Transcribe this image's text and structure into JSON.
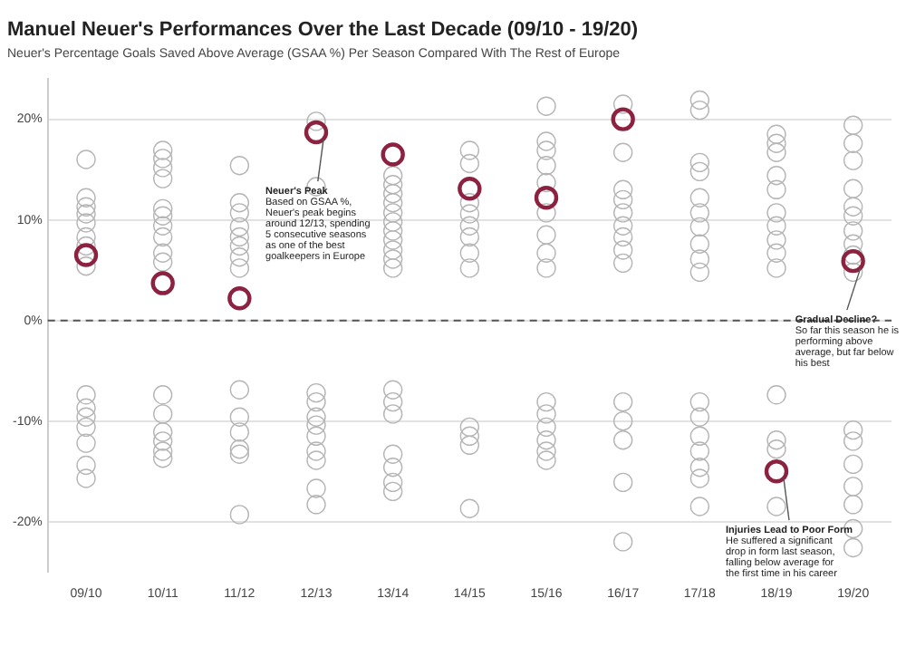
{
  "chart_data": {
    "type": "scatter",
    "title": "Manuel Neuer's Performances Over the Last Decade (09/10 - 19/20)",
    "subtitle": "Neuer's Percentage Goals Saved Above Average (GSAA %) Per Season Compared With The Rest of Europe",
    "categories": [
      "09/10",
      "10/11",
      "11/12",
      "12/13",
      "13/14",
      "14/15",
      "15/16",
      "16/17",
      "17/18",
      "18/19",
      "19/20"
    ],
    "ylim": [
      -25,
      24
    ],
    "yticks": [
      {
        "value": -20,
        "label": "-20%"
      },
      {
        "value": -10,
        "label": "-10%"
      },
      {
        "value": 0,
        "label": "0%"
      },
      {
        "value": 10,
        "label": "10%"
      },
      {
        "value": 20,
        "label": "20%"
      }
    ],
    "grid": "y",
    "marker": "circle",
    "legend": false,
    "ref_lines": [
      {
        "axis": "y",
        "value": 0,
        "line_style": "dashed"
      }
    ],
    "series": [
      {
        "color": "#b5b5b5",
        "x": [
          "09/10",
          "09/10",
          "09/10",
          "09/10",
          "09/10",
          "09/10",
          "09/10",
          "09/10",
          "09/10",
          "09/10",
          "09/10",
          "09/10",
          "09/10",
          "09/10",
          "09/10",
          "10/11",
          "10/11",
          "10/11",
          "10/11",
          "10/11",
          "10/11",
          "10/11",
          "10/11",
          "10/11",
          "10/11",
          "10/11",
          "10/11",
          "10/11",
          "10/11",
          "10/11",
          "10/11",
          "11/12",
          "11/12",
          "11/12",
          "11/12",
          "11/12",
          "11/12",
          "11/12",
          "11/12",
          "11/12",
          "11/12",
          "11/12",
          "11/12",
          "11/12",
          "11/12",
          "12/13",
          "12/13",
          "12/13",
          "12/13",
          "12/13",
          "12/13",
          "12/13",
          "12/13",
          "12/13",
          "12/13",
          "12/13",
          "13/14",
          "13/14",
          "13/14",
          "13/14",
          "13/14",
          "13/14",
          "13/14",
          "13/14",
          "13/14",
          "13/14",
          "13/14",
          "13/14",
          "13/14",
          "13/14",
          "13/14",
          "13/14",
          "13/14",
          "13/14",
          "14/15",
          "14/15",
          "14/15",
          "14/15",
          "14/15",
          "14/15",
          "14/15",
          "14/15",
          "14/15",
          "14/15",
          "14/15",
          "14/15",
          "15/16",
          "15/16",
          "15/16",
          "15/16",
          "15/16",
          "15/16",
          "15/16",
          "15/16",
          "15/16",
          "15/16",
          "15/16",
          "15/16",
          "15/16",
          "15/16",
          "15/16",
          "16/17",
          "16/17",
          "16/17",
          "16/17",
          "16/17",
          "16/17",
          "16/17",
          "16/17",
          "16/17",
          "16/17",
          "16/17",
          "16/17",
          "16/17",
          "16/17",
          "17/18",
          "17/18",
          "17/18",
          "17/18",
          "17/18",
          "17/18",
          "17/18",
          "17/18",
          "17/18",
          "17/18",
          "17/18",
          "17/18",
          "17/18",
          "17/18",
          "17/18",
          "17/18",
          "17/18",
          "18/19",
          "18/19",
          "18/19",
          "18/19",
          "18/19",
          "18/19",
          "18/19",
          "18/19",
          "18/19",
          "18/19",
          "18/19",
          "18/19",
          "18/19",
          "18/19",
          "19/20",
          "19/20",
          "19/20",
          "19/20",
          "19/20",
          "19/20",
          "19/20",
          "19/20",
          "19/20",
          "19/20",
          "19/20",
          "19/20",
          "19/20",
          "19/20",
          "19/20",
          "19/20",
          "19/20"
        ],
        "values": [
          16,
          12.2,
          11.3,
          10.6,
          9.7,
          8.3,
          7.4,
          5.4,
          -7.4,
          -8.7,
          -9.6,
          -10.6,
          -12.2,
          -14.4,
          -15.7,
          16.9,
          16.1,
          15.2,
          14.1,
          11.1,
          10.4,
          9.4,
          8.3,
          6.7,
          5.8,
          -7.4,
          -9.3,
          -11.1,
          -12,
          -13,
          -13.7,
          15.4,
          11.7,
          10.7,
          9.3,
          8.3,
          7.4,
          6.3,
          5.2,
          -6.9,
          -9.6,
          -11.1,
          -12.8,
          -13.3,
          -19.3,
          19.8,
          13.3,
          -7.2,
          -8.1,
          -9.6,
          -10.4,
          -11.5,
          -13,
          -13.9,
          -16.7,
          -18.3,
          14.4,
          13.5,
          12.6,
          11.7,
          10.7,
          9.8,
          8.9,
          8,
          7,
          6.1,
          5.2,
          -6.9,
          -8.1,
          -9.3,
          -13.3,
          -14.6,
          -16.1,
          -17,
          16.9,
          15.6,
          11.7,
          10.6,
          9.4,
          8.3,
          6.7,
          5.2,
          -10.6,
          -11.5,
          -12.4,
          -18.7,
          21.3,
          17.8,
          16.9,
          15.4,
          13.7,
          10.7,
          8.5,
          6.7,
          5.2,
          -8.1,
          -9.3,
          -10.6,
          -11.9,
          -13,
          -13.9,
          21.5,
          16.7,
          13,
          12,
          10.7,
          9.4,
          8.3,
          7,
          5.7,
          -8.1,
          -10,
          -11.9,
          -16.1,
          -22,
          21.9,
          20.9,
          15.7,
          14.8,
          12.2,
          10.7,
          9.3,
          7.6,
          6.1,
          4.8,
          -8.1,
          -9.6,
          -11.5,
          -13,
          -14.6,
          -15.7,
          -18.5,
          18.5,
          17.6,
          16.7,
          14.4,
          13,
          10.7,
          9.4,
          8,
          6.7,
          5.2,
          -7.4,
          -11.9,
          -12.8,
          -18.5,
          19.4,
          17.6,
          15.9,
          13.1,
          11.3,
          10.4,
          8.9,
          7.6,
          6.5,
          4.8,
          -10.9,
          -12,
          -14.3,
          -16.5,
          -18.3,
          -20.7,
          -22.6
        ]
      },
      {
        "color": "#8c2140",
        "x": [
          "09/10",
          "10/11",
          "11/12",
          "12/13",
          "13/14",
          "14/15",
          "15/16",
          "16/17",
          "17/18",
          "18/19",
          "19/20"
        ],
        "values": [
          6.5,
          3.7,
          2.2,
          18.7,
          16.5,
          13.1,
          12.2,
          20,
          null,
          -15,
          5.9
        ]
      }
    ],
    "annotations": [
      {
        "text": "Neuer's Peak\nBased on GSAA %, Neuer's peak begins around 12/13, spending 5 consecutive seasons as one of the best goalkeepers in Europe",
        "x": "12/13",
        "y": 18.7
      },
      {
        "text": "Gradual Decline?\nSo far this season he is performing above average, but far below his best",
        "x": "19/20",
        "y": 5.9
      },
      {
        "text": "Injuries Lead to Poor Form\nHe suffered a significant drop in form last season, falling below average for the first time in his career",
        "x": "18/19",
        "y": -15
      }
    ]
  }
}
